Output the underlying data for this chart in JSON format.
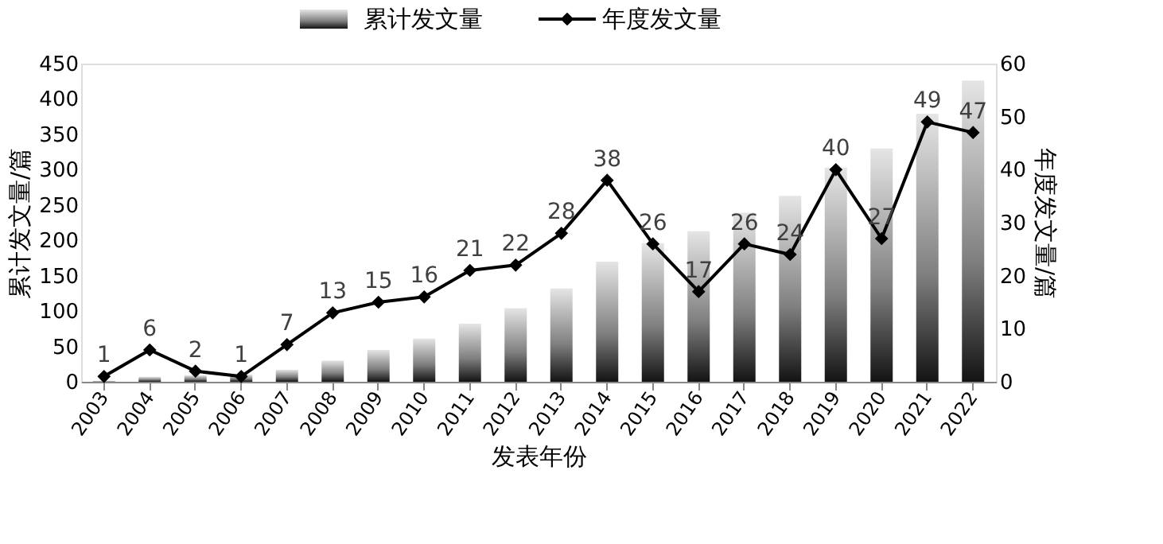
{
  "chart_data": {
    "type": "bar",
    "categories": [
      "2003",
      "2004",
      "2005",
      "2006",
      "2007",
      "2008",
      "2009",
      "2010",
      "2011",
      "2012",
      "2013",
      "2014",
      "2015",
      "2016",
      "2017",
      "2018",
      "2019",
      "2020",
      "2021",
      "2022"
    ],
    "series": [
      {
        "name": "累计发文量",
        "color": "#7f7f7f",
        "values": [
          1,
          7,
          9,
          10,
          17,
          30,
          45,
          61,
          82,
          104,
          132,
          170,
          196,
          213,
          239,
          263,
          303,
          330,
          379,
          426
        ]
      },
      {
        "name": "年度发文量",
        "type": "line",
        "axis": "y2",
        "color": "#000000",
        "marker": "diamond",
        "line_style": "solid",
        "values": [
          1,
          6,
          2,
          1,
          7,
          13,
          15,
          16,
          21,
          22,
          28,
          38,
          26,
          17,
          26,
          24,
          40,
          27,
          49,
          47
        ],
        "value_labels": [
          "1",
          "6",
          "2",
          "1",
          "7",
          "13",
          "15",
          "16",
          "21",
          "22",
          "28",
          "38",
          "26",
          "17",
          "26",
          "24",
          "40",
          "27",
          "49",
          "47"
        ]
      }
    ],
    "xlabel": "发表年份",
    "ylabel": "累计发文量/篇",
    "y2label": "年度发文量/篇",
    "ylim": [
      0,
      450
    ],
    "yticks": [
      0,
      50,
      100,
      150,
      200,
      250,
      300,
      350,
      400,
      450
    ],
    "y2lim": [
      0,
      60
    ],
    "y2ticks": [
      0,
      10,
      20,
      30,
      40,
      50,
      60
    ],
    "grid": false,
    "legend": "top"
  }
}
